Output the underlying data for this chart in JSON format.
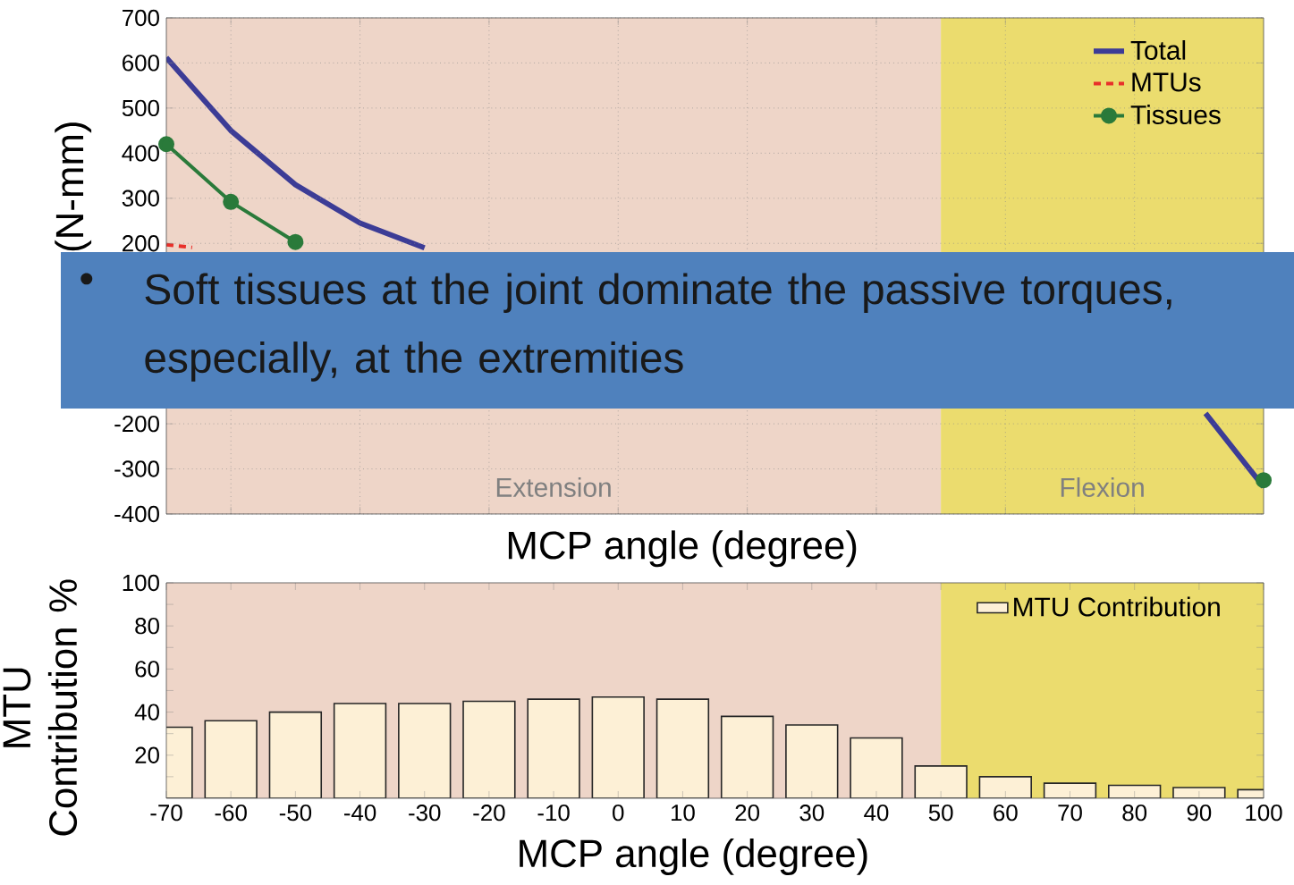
{
  "chart_data": [
    {
      "type": "line",
      "xlabel": "MCP angle (degree)",
      "ylabel": "(N-mm)",
      "x": [
        -70,
        -60,
        -50,
        -40,
        -30,
        -20,
        -10,
        0,
        10,
        20,
        30,
        40,
        50,
        60,
        70,
        80,
        90,
        100
      ],
      "xlim": [
        -70,
        100
      ],
      "ylim": [
        -400,
        700
      ],
      "xticks": [
        {
          "value": -60,
          "label": null
        },
        {
          "value": -40,
          "label": null
        },
        {
          "value": -20,
          "label": null
        },
        {
          "value": 0,
          "label": null
        },
        {
          "value": 20,
          "label": null
        },
        {
          "value": 40,
          "label": null
        },
        {
          "value": 60,
          "label": null
        },
        {
          "value": 80,
          "label": null
        }
      ],
      "yticks": [
        -400,
        -300,
        -200,
        200,
        300,
        400,
        500,
        600,
        700
      ],
      "tick_labels": "y",
      "grid": true,
      "legend": "top right",
      "bands": [
        {
          "axis": "x",
          "from": -70,
          "to": 50,
          "label": "Extension",
          "color": "#eed5c8"
        },
        {
          "axis": "x",
          "from": 50,
          "to": 100,
          "label": "Flexion",
          "color": "#ebdc6e"
        }
      ],
      "series": [
        {
          "name": "Total",
          "color": "#3c3c96",
          "x": [
            -70,
            -60,
            -50,
            -40,
            -30,
            0,
            91,
            100
          ],
          "values": [
            612,
            450,
            330,
            245,
            190,
            null,
            -177,
            -340
          ]
        },
        {
          "name": "MTUs",
          "color": "#e8302a",
          "line_style": "dashed",
          "x": [
            -70,
            -66
          ],
          "values": [
            197,
            191
          ]
        },
        {
          "name": "Tissues",
          "color": "#2a7a3a",
          "marker": "circle",
          "values": [
            420,
            292,
            203,
            null,
            null,
            null,
            null,
            null,
            null,
            null,
            null,
            null,
            null,
            null,
            null,
            null,
            null,
            -325
          ]
        }
      ],
      "annotations": [
        "•",
        "Soft tissues at the joint dominate the passive torques, especially, at the extremities"
      ]
    },
    {
      "type": "bar",
      "xlabel": "MCP angle (degree)",
      "ylabel": "MTU Contribution %",
      "x": [
        -70,
        -60,
        -50,
        -40,
        -30,
        -20,
        -10,
        0,
        10,
        20,
        30,
        40,
        50,
        60,
        70,
        80,
        90,
        100
      ],
      "xlim": [
        -70,
        100
      ],
      "ylim": [
        0,
        100
      ],
      "xticks": [
        -70,
        -60,
        -50,
        -40,
        -30,
        -20,
        -10,
        0,
        10,
        20,
        30,
        40,
        50,
        60,
        70,
        80,
        90,
        100
      ],
      "yticks": [
        {
          "value": 10,
          "label": null
        },
        20,
        {
          "value": 30,
          "label": null
        },
        40,
        {
          "value": 50,
          "label": null
        },
        60,
        {
          "value": 70,
          "label": null
        },
        80,
        {
          "value": 90,
          "label": null
        },
        100
      ],
      "legend": "top right",
      "bands": [
        {
          "axis": "x",
          "from": -70,
          "to": 50,
          "color": "#eed5c8"
        },
        {
          "axis": "x",
          "from": 50,
          "to": 100,
          "color": "#ebdc6e"
        }
      ],
      "series": [
        {
          "name": "MTU Contribution",
          "color": "#fdf0d6",
          "values": [
            33,
            36,
            40,
            44,
            44,
            45,
            46,
            47,
            46,
            38,
            34,
            28,
            15,
            10,
            7,
            6,
            5,
            4
          ]
        }
      ]
    }
  ]
}
